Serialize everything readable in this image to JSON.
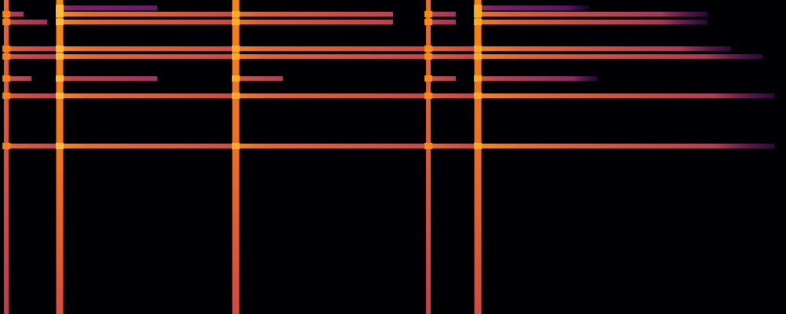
{
  "chart_data": {
    "type": "spectrogram",
    "xlim": [
      0,
      100
    ],
    "ylim": [
      0,
      100
    ],
    "tick_labels": false,
    "grid": false,
    "onsets": {
      "x": [
        0.8,
        7.6,
        30,
        54.5,
        60.8
      ],
      "levels": [
        0.68,
        0.78,
        0.76,
        0.7,
        0.76
      ]
    },
    "bands": [
      {
        "frequency": 53.5,
        "segments": [
          [
            0.8,
            7.6,
            0.72
          ],
          [
            7.6,
            30,
            0.76
          ],
          [
            30,
            54.5,
            0.74
          ],
          [
            54.5,
            60.8,
            0.72
          ],
          [
            60.8,
            98.5,
            0.76
          ]
        ]
      },
      {
        "frequency": 69.5,
        "segments": [
          [
            0.8,
            7.6,
            0.68
          ],
          [
            7.6,
            30,
            0.75
          ],
          [
            30,
            54.5,
            0.73
          ],
          [
            54.5,
            60.8,
            0.7
          ],
          [
            60.8,
            98.5,
            0.75
          ]
        ]
      },
      {
        "frequency": 75,
        "segments": [
          [
            0.8,
            4,
            0.66
          ],
          [
            7.6,
            20,
            0.6
          ],
          [
            30,
            36,
            0.66
          ],
          [
            54.5,
            58,
            0.66
          ],
          [
            60.8,
            76,
            0.6
          ]
        ]
      },
      {
        "frequency": 82,
        "segments": [
          [
            0.8,
            7.6,
            0.66
          ],
          [
            7.6,
            30,
            0.74
          ],
          [
            30,
            54.5,
            0.72
          ],
          [
            54.5,
            60.8,
            0.7
          ],
          [
            60.8,
            97,
            0.73
          ]
        ]
      },
      {
        "frequency": 84.5,
        "segments": [
          [
            0.8,
            7.6,
            0.7
          ],
          [
            7.6,
            30,
            0.76
          ],
          [
            30,
            54.5,
            0.74
          ],
          [
            54.5,
            60.8,
            0.72
          ],
          [
            60.8,
            93,
            0.74
          ]
        ]
      },
      {
        "frequency": 93,
        "segments": [
          [
            0.8,
            6,
            0.6
          ],
          [
            7.6,
            30,
            0.74
          ],
          [
            30,
            50,
            0.7
          ],
          [
            54.5,
            58,
            0.6
          ],
          [
            60.8,
            90,
            0.72
          ]
        ]
      },
      {
        "frequency": 95.5,
        "segments": [
          [
            0.8,
            3,
            0.6
          ],
          [
            7.6,
            30,
            0.75
          ],
          [
            30,
            50,
            0.7
          ],
          [
            54.5,
            58,
            0.6
          ],
          [
            60.8,
            90,
            0.7
          ]
        ]
      },
      {
        "frequency": 97.5,
        "segments": [
          [
            7.6,
            20,
            0.4
          ],
          [
            60.8,
            75,
            0.4
          ]
        ]
      }
    ]
  }
}
